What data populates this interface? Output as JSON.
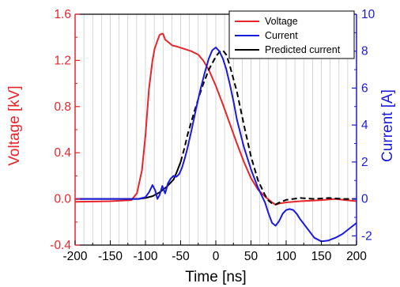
{
  "chart_data": {
    "type": "line",
    "xlabel": "Time [ns]",
    "ylabel_left": "Voltage [kV]",
    "ylabel_right": "Current [A]",
    "xlim": [
      -200,
      200
    ],
    "ylim_left": [
      -0.4,
      1.6
    ],
    "ylim_right": [
      -2.5,
      10
    ],
    "x_ticks": [
      "-200",
      "-150",
      "-100",
      "-50",
      "0",
      "50",
      "100",
      "150",
      "200"
    ],
    "y_left_ticks": [
      "-0.4",
      "0.0",
      "0.4",
      "0.8",
      "1.2",
      "1.6"
    ],
    "y_right_ticks": [
      "-2",
      "0",
      "2",
      "4",
      "6",
      "8",
      "10"
    ],
    "grid": "vertical minor lines every 12.5 ns",
    "legend_position": "top-right",
    "colors": {
      "voltage": "#e8252a",
      "current": "#1a1adf",
      "predicted": "#000000",
      "left_axis": "#e8252a",
      "right_axis": "#1a1adf",
      "grid": "#cccccc"
    },
    "series": [
      {
        "name": "Voltage",
        "axis": "left",
        "style": "solid",
        "x": [
          -200,
          -150,
          -120,
          -112,
          -105,
          -100,
          -95,
          -90,
          -87,
          -83,
          -80,
          -77,
          -75,
          -72,
          -68,
          -62,
          -55,
          -45,
          -35,
          -25,
          -18,
          -10,
          -5,
          0,
          5,
          10,
          20,
          30,
          40,
          50,
          60,
          70,
          80,
          85,
          90,
          100,
          120,
          150,
          170,
          185,
          200
        ],
        "y": [
          -0.025,
          -0.02,
          -0.01,
          0.05,
          0.25,
          0.55,
          0.95,
          1.2,
          1.3,
          1.37,
          1.42,
          1.43,
          1.43,
          1.38,
          1.36,
          1.33,
          1.32,
          1.3,
          1.28,
          1.25,
          1.2,
          1.12,
          1.05,
          0.98,
          0.9,
          0.82,
          0.65,
          0.48,
          0.32,
          0.18,
          0.08,
          0.02,
          -0.03,
          -0.05,
          -0.04,
          -0.03,
          -0.02,
          -0.01,
          0.0,
          -0.01,
          -0.02
        ]
      },
      {
        "name": "Current",
        "axis": "right",
        "style": "solid",
        "x": [
          -200,
          -150,
          -110,
          -100,
          -95,
          -90,
          -86,
          -83,
          -80,
          -76,
          -72,
          -68,
          -64,
          -60,
          -56,
          -52,
          -48,
          -44,
          -40,
          -34,
          -28,
          -22,
          -16,
          -10,
          -5,
          0,
          5,
          10,
          15,
          20,
          25,
          30,
          40,
          50,
          60,
          70,
          75,
          80,
          85,
          90,
          95,
          100,
          105,
          110,
          115,
          120,
          130,
          140,
          150,
          160,
          170,
          180,
          190,
          200
        ],
        "y": [
          0.0,
          0.0,
          0.0,
          0.1,
          0.35,
          0.75,
          0.45,
          0.0,
          0.2,
          0.7,
          0.3,
          0.85,
          1.1,
          1.25,
          1.2,
          1.35,
          1.7,
          2.2,
          2.8,
          3.8,
          4.9,
          5.9,
          6.8,
          7.6,
          8.05,
          8.2,
          8.0,
          7.6,
          7.0,
          6.2,
          5.3,
          4.3,
          2.8,
          1.6,
          0.6,
          -0.2,
          -0.8,
          -1.3,
          -1.45,
          -1.2,
          -0.8,
          -0.6,
          -0.55,
          -0.6,
          -0.8,
          -1.1,
          -1.6,
          -2.1,
          -2.3,
          -2.25,
          -2.1,
          -1.9,
          -1.6,
          -1.3
        ]
      },
      {
        "name": "Predicted current",
        "axis": "right",
        "style": "solid then dashed",
        "dash_from_x": -50,
        "x": [
          -200,
          -150,
          -110,
          -100,
          -90,
          -80,
          -70,
          -60,
          -55,
          -50,
          -45,
          -40,
          -30,
          -20,
          -10,
          0,
          5,
          10,
          15,
          20,
          30,
          40,
          50,
          60,
          70,
          75,
          80,
          85,
          90,
          100,
          120,
          140,
          160,
          180,
          200
        ],
        "y": [
          0.0,
          0.0,
          0.0,
          0.05,
          0.15,
          0.35,
          0.65,
          1.05,
          1.5,
          2.0,
          2.7,
          3.5,
          4.8,
          6.0,
          7.0,
          7.7,
          7.95,
          8.05,
          7.8,
          7.2,
          5.8,
          4.0,
          2.3,
          1.0,
          0.2,
          -0.1,
          -0.25,
          -0.3,
          -0.2,
          -0.05,
          0.05,
          0.0,
          0.05,
          0.0,
          0.0
        ]
      }
    ]
  }
}
